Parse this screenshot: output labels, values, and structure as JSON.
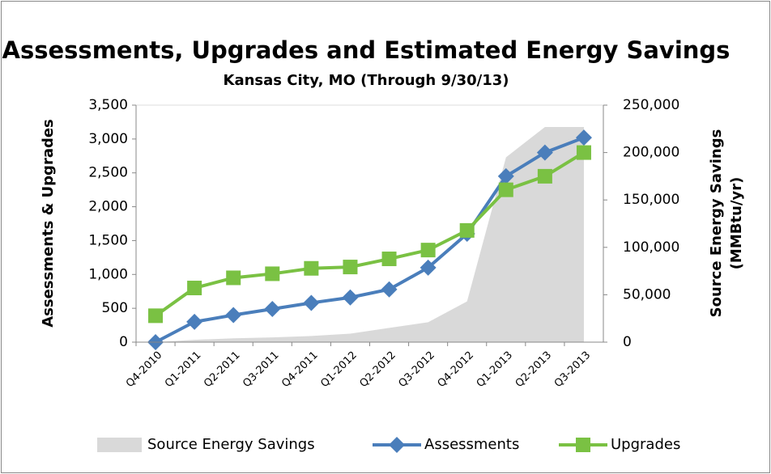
{
  "chart_data": {
    "type": "line",
    "title": "Assessments, Upgrades and Estimated Energy Savings",
    "subtitle": "Kansas City, MO (Through 9/30/13)",
    "ylabel": "Assessments & Upgrades",
    "y2label": [
      "Source Energy Savings",
      "(MMBtu/yr)"
    ],
    "categories": [
      "Q4-2010",
      "Q1-2011",
      "Q2-2011",
      "Q3-2011",
      "Q4-2011",
      "Q1-2012",
      "Q2-2012",
      "Q3-2012",
      "Q4-2012",
      "Q1-2013",
      "Q2-2013",
      "Q3-2013"
    ],
    "series": [
      {
        "name": "Source Energy Savings",
        "type": "area",
        "axis": "y2",
        "color": "#d9d9d9",
        "values": [
          0,
          2500,
          4000,
          5000,
          6500,
          9000,
          15000,
          21000,
          43000,
          195000,
          227000,
          227000
        ]
      },
      {
        "name": "Assessments",
        "type": "line",
        "marker": "diamond",
        "color": "#4a7ebb",
        "values": [
          0,
          300,
          400,
          490,
          580,
          660,
          780,
          1100,
          1600,
          2450,
          2800,
          3020
        ]
      },
      {
        "name": "Upgrades",
        "type": "line",
        "marker": "square",
        "color": "#7ac143",
        "values": [
          390,
          800,
          950,
          1010,
          1090,
          1110,
          1230,
          1360,
          1650,
          2250,
          2450,
          2800
        ]
      }
    ],
    "ylim": [
      0,
      3500
    ],
    "yticks": [
      0,
      500,
      {
        "value": 1000,
        "label": "1,000"
      },
      {
        "value": 1500,
        "label": "1,500"
      },
      {
        "value": 2000,
        "label": "2,000"
      },
      {
        "value": 2500,
        "label": "2,500"
      },
      {
        "value": 3000,
        "label": "3,000"
      },
      {
        "value": 3500,
        "label": "3,500"
      }
    ],
    "y2lim": [
      0,
      250000
    ],
    "y2ticks": [
      0,
      {
        "value": 50000,
        "label": "50,000"
      },
      {
        "value": 100000,
        "label": "100,000"
      },
      {
        "value": 150000,
        "label": "150,000"
      },
      {
        "value": 200000,
        "label": "200,000"
      },
      {
        "value": 250000,
        "label": "250,000"
      }
    ],
    "grid": false,
    "legend": "bottom"
  }
}
